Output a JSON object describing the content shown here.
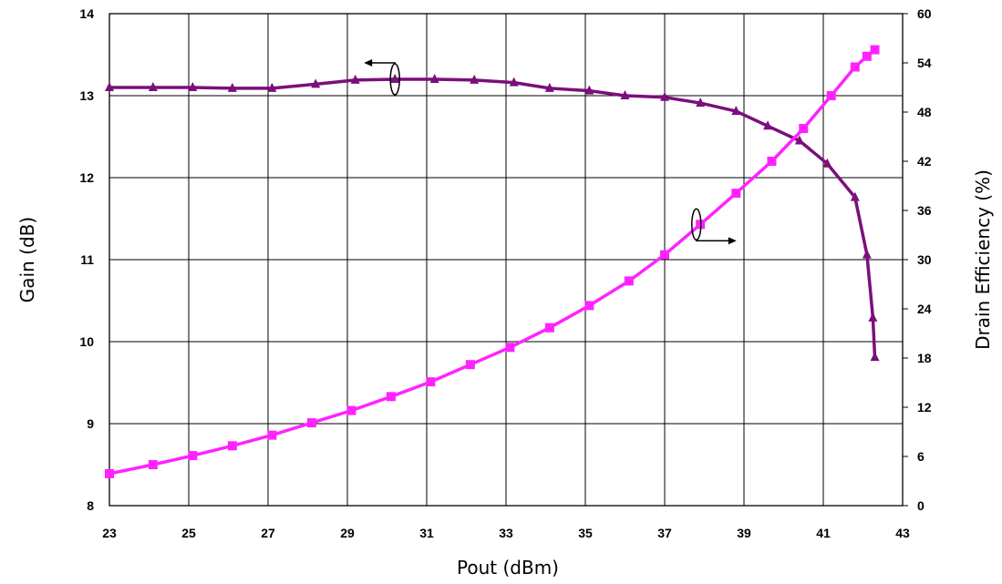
{
  "chart_data": {
    "type": "line",
    "title": "",
    "xlabel": "Pout (dBm)",
    "ylabel_left": "Gain (dB)",
    "ylabel_right": "Drain Efficiency (%)",
    "xlim": [
      23,
      43
    ],
    "ylim_left": [
      8,
      14
    ],
    "ylim_right": [
      0,
      60
    ],
    "x_ticks": [
      23,
      25,
      27,
      29,
      31,
      33,
      35,
      37,
      39,
      41,
      43
    ],
    "y_left_ticks": [
      8,
      9,
      10,
      11,
      12,
      13,
      14
    ],
    "y_right_ticks": [
      0,
      6,
      12,
      18,
      24,
      30,
      36,
      42,
      48,
      54,
      60
    ],
    "grid": true,
    "legend": "none",
    "series": [
      {
        "axis": "left",
        "color": "#7B0F7B",
        "marker": "triangle",
        "x": [
          23.0,
          24.1,
          25.1,
          26.1,
          27.1,
          28.2,
          29.2,
          30.2,
          31.2,
          32.2,
          33.2,
          34.1,
          35.1,
          36.0,
          37.0,
          37.9,
          38.8,
          39.6,
          40.4,
          41.1,
          41.8,
          42.1,
          42.25,
          42.3
        ],
        "values": [
          13.1,
          13.1,
          13.1,
          13.09,
          13.09,
          13.14,
          13.19,
          13.2,
          13.2,
          13.19,
          13.16,
          13.09,
          13.06,
          13.0,
          12.98,
          12.91,
          12.81,
          12.63,
          12.45,
          12.17,
          11.76,
          11.06,
          10.29,
          9.81
        ]
      },
      {
        "axis": "right",
        "color": "#FF22FF",
        "marker": "square",
        "x": [
          23.0,
          24.1,
          25.1,
          26.1,
          27.1,
          28.1,
          29.1,
          30.1,
          31.1,
          32.1,
          33.1,
          34.1,
          35.1,
          36.1,
          37.0,
          37.9,
          38.8,
          39.7,
          40.5,
          41.2,
          41.8,
          42.1,
          42.3
        ],
        "values": [
          3.9,
          5.0,
          6.1,
          7.3,
          8.6,
          10.1,
          11.6,
          13.3,
          15.1,
          17.2,
          19.3,
          21.7,
          24.4,
          27.4,
          30.6,
          34.3,
          38.1,
          42.0,
          46.0,
          50.0,
          53.5,
          54.8,
          55.6
        ]
      }
    ],
    "annotations": [
      {
        "name": "gain-axis-arrow",
        "points_to": "left",
        "at_x": 30.2,
        "at_y_left": 13.2
      },
      {
        "name": "efficiency-axis-arrow",
        "points_to": "right",
        "at_x": 37.8,
        "at_y_right": 34.3
      }
    ]
  }
}
